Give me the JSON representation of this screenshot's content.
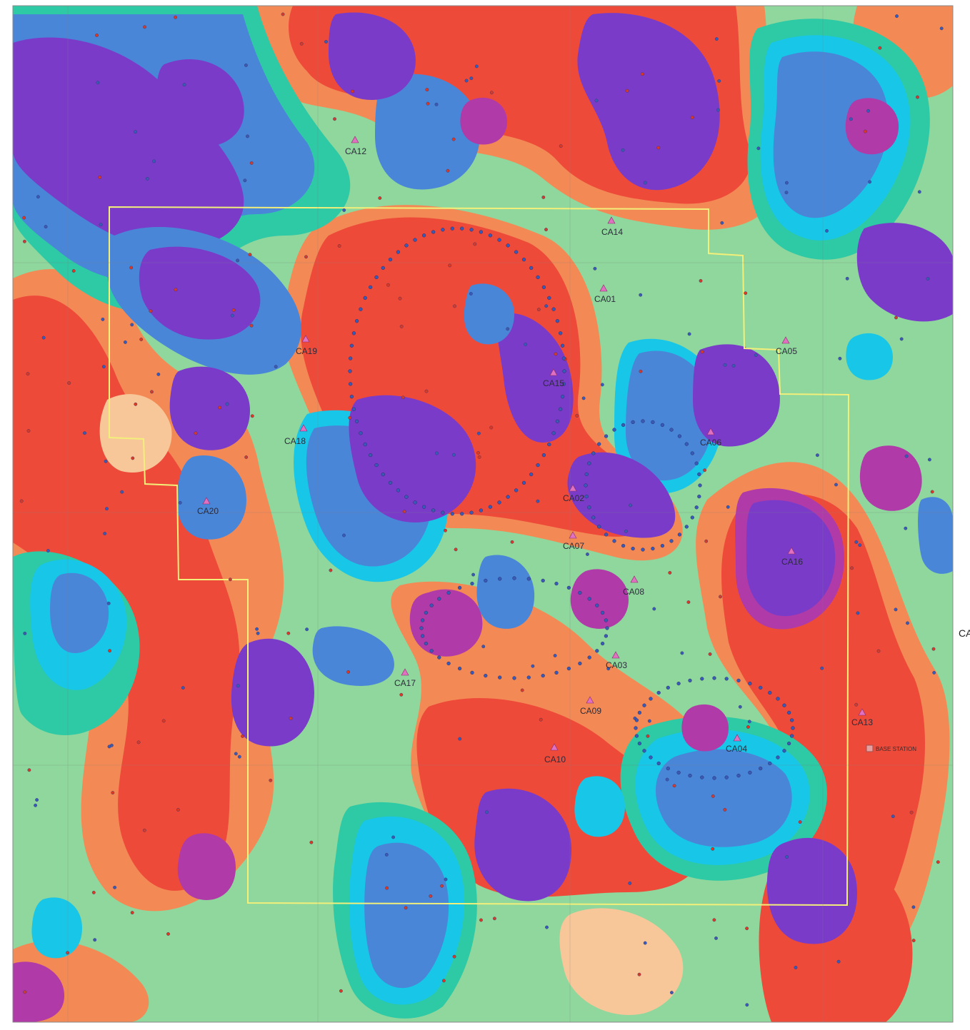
{
  "map": {
    "colors": {
      "outer": "#8fd79c",
      "green": "#5fd08a",
      "teal": "#2ec9a5",
      "cyan": "#18c6e8",
      "blue": "#4a86d8",
      "purple": "#7a3cc8",
      "magenta": "#b03aa8",
      "red": "#ee4a3a",
      "orange": "#f38a55",
      "peach": "#f7c79a",
      "survey_boundary": "#f2ef7a",
      "station_triangle": "#e070c0",
      "grid_line": "#7c7c7c"
    },
    "stations": [
      {
        "id": "CA01",
        "label": "CA01"
      },
      {
        "id": "CA02",
        "label": "CA02"
      },
      {
        "id": "CA03",
        "label": "CA03"
      },
      {
        "id": "CA04",
        "label": "CA04"
      },
      {
        "id": "CA05",
        "label": "CA05"
      },
      {
        "id": "CA06",
        "label": "CA06"
      },
      {
        "id": "CA07",
        "label": "CA07"
      },
      {
        "id": "CA08",
        "label": "CA08"
      },
      {
        "id": "CA09",
        "label": "CA09"
      },
      {
        "id": "CA10",
        "label": "CA10"
      },
      {
        "id": "CA12",
        "label": "CA12"
      },
      {
        "id": "CA13",
        "label": "CA13"
      },
      {
        "id": "CA14",
        "label": "CA14"
      },
      {
        "id": "CA15",
        "label": "CA15"
      },
      {
        "id": "CA16",
        "label": "CA16"
      },
      {
        "id": "CA17",
        "label": "CA17"
      },
      {
        "id": "CA18",
        "label": "CA18"
      },
      {
        "id": "CA19",
        "label": "CA19"
      },
      {
        "id": "CA20",
        "label": "CA20"
      }
    ],
    "base_station": {
      "label": "BASE STATION"
    },
    "edge_label": "CA"
  }
}
